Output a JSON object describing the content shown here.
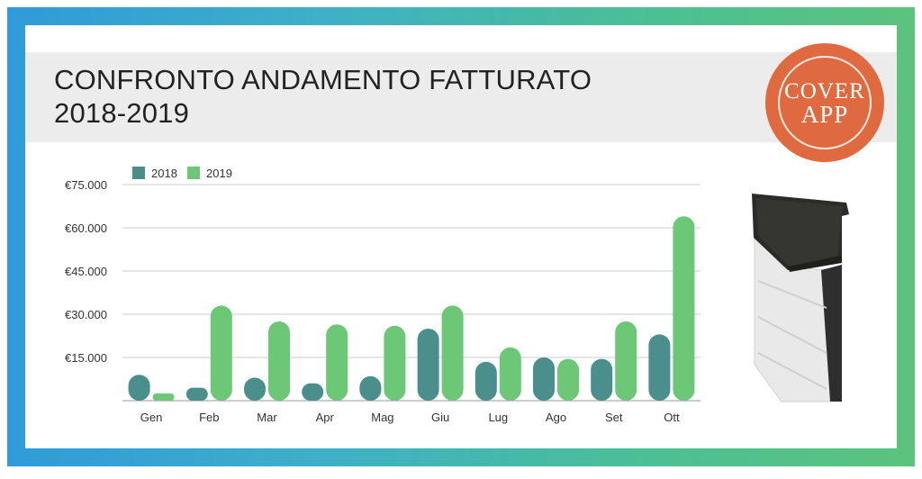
{
  "header": {
    "title_line1": "CONFRONTO ANDAMENTO FATTURATO",
    "title_line2": "2018-2019"
  },
  "logo": {
    "line1": "COVER",
    "line2": "APP"
  },
  "colors": {
    "series_2018": "#4a8f8c",
    "series_2019": "#6cc777",
    "logo_orange": "#e06a3f",
    "gridline": "#cccccc"
  },
  "product_image": {
    "icon": "roller-shutter-box-product"
  },
  "chart_data": {
    "type": "bar",
    "title": "",
    "xlabel": "",
    "ylabel": "",
    "ylim": [
      0,
      75000
    ],
    "y_ticks": [
      15000,
      30000,
      45000,
      60000,
      75000
    ],
    "y_tick_labels": [
      "€15.000",
      "€30.000",
      "€45.000",
      "€60.000",
      "€75.000"
    ],
    "grid": true,
    "legend_position": "top-left",
    "categories": [
      "Gen",
      "Feb",
      "Mar",
      "Apr",
      "Mag",
      "Giu",
      "Lug",
      "Ago",
      "Set",
      "Ott"
    ],
    "series": [
      {
        "name": "2018",
        "color": "#4a8f8c",
        "values": [
          9000,
          4500,
          8000,
          6000,
          8500,
          25000,
          13500,
          15000,
          14500,
          23000
        ]
      },
      {
        "name": "2019",
        "color": "#6cc777",
        "values": [
          2500,
          33000,
          27500,
          26500,
          26000,
          33000,
          18500,
          14500,
          27500,
          64000
        ]
      }
    ]
  }
}
